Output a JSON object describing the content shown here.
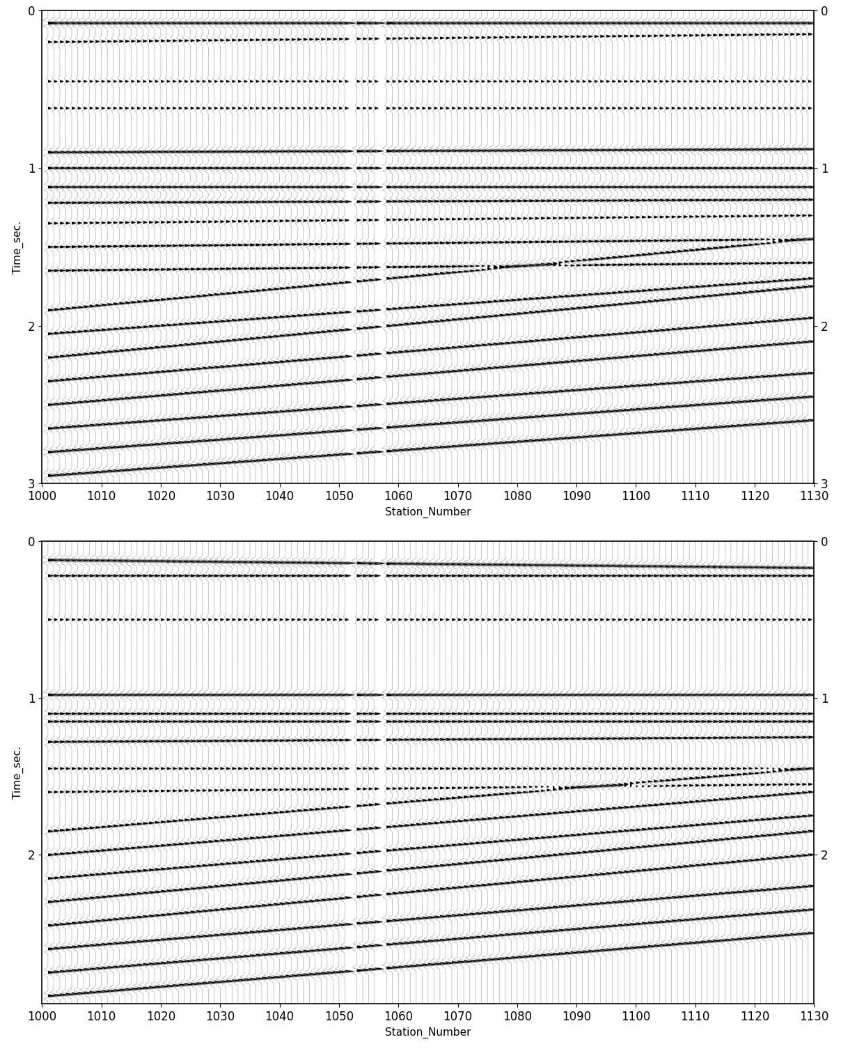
{
  "chart_data": [
    {
      "type": "wiggle",
      "x_label": "Station_Number",
      "y_label": "Time_sec.",
      "xlim": [
        1000,
        1130
      ],
      "xticks": [
        1000,
        1010,
        1020,
        1030,
        1040,
        1050,
        1060,
        1070,
        1080,
        1090,
        1100,
        1110,
        1120,
        1130
      ],
      "ylim": [
        3,
        0
      ],
      "yticks": [
        0,
        1,
        2,
        3
      ],
      "color": "#000000",
      "x": [
        1001,
        1002,
        1003,
        1004,
        1005,
        1006,
        1007,
        1008,
        1009,
        1010,
        1011,
        1012,
        1013,
        1014,
        1015,
        1016,
        1017,
        1018,
        1019,
        1020,
        1021,
        1022,
        1023,
        1024,
        1025,
        1026,
        1027,
        1028,
        1029,
        1030,
        1031,
        1032,
        1033,
        1034,
        1035,
        1036,
        1037,
        1038,
        1039,
        1040,
        1041,
        1042,
        1043,
        1044,
        1045,
        1046,
        1047,
        1048,
        1049,
        1050,
        1051,
        1053,
        1054,
        1055,
        1056,
        1058,
        1059,
        1060,
        1061,
        1062,
        1063,
        1064,
        1065,
        1066,
        1067,
        1068,
        1069,
        1070,
        1071,
        1072,
        1073,
        1074,
        1075,
        1076,
        1077,
        1078,
        1079,
        1080,
        1081,
        1082,
        1083,
        1084,
        1085,
        1086,
        1087,
        1088,
        1089,
        1090,
        1091,
        1092,
        1093,
        1094,
        1095,
        1096,
        1097,
        1098,
        1099,
        1100,
        1101,
        1102,
        1103,
        1104,
        1105,
        1106,
        1107,
        1108,
        1109,
        1110,
        1111,
        1112,
        1113,
        1114,
        1115,
        1116,
        1117,
        1118,
        1119,
        1120,
        1121,
        1122,
        1123,
        1124,
        1125,
        1126,
        1127,
        1128,
        1129
      ],
      "events": [
        {
          "time_first": 0.08,
          "time_last": 0.08,
          "amplitude": 1.5
        },
        {
          "time_first": 0.2,
          "time_last": 0.15,
          "amplitude": 0.6
        },
        {
          "time_first": 0.45,
          "time_last": 0.45,
          "amplitude": 0.5
        },
        {
          "time_first": 0.62,
          "time_last": 0.62,
          "amplitude": 0.5
        },
        {
          "time_first": 0.9,
          "time_last": 0.88,
          "amplitude": 1.2
        },
        {
          "time_first": 1.0,
          "time_last": 1.0,
          "amplitude": 1.0
        },
        {
          "time_first": 1.12,
          "time_last": 1.12,
          "amplitude": 1.1
        },
        {
          "time_first": 1.22,
          "time_last": 1.2,
          "amplitude": 0.9
        },
        {
          "time_first": 1.35,
          "time_last": 1.3,
          "amplitude": 0.6
        },
        {
          "time_first": 1.5,
          "time_last": 1.45,
          "amplitude": 0.8
        },
        {
          "time_first": 1.65,
          "time_last": 1.6,
          "amplitude": 0.8
        },
        {
          "time_first": 1.9,
          "time_last": 1.45,
          "amplitude": 0.9
        },
        {
          "time_first": 2.05,
          "time_last": 1.7,
          "amplitude": 0.9
        },
        {
          "time_first": 2.2,
          "time_last": 1.75,
          "amplitude": 1.0
        },
        {
          "time_first": 2.35,
          "time_last": 1.95,
          "amplitude": 1.0
        },
        {
          "time_first": 2.5,
          "time_last": 2.1,
          "amplitude": 1.1
        },
        {
          "time_first": 2.65,
          "time_last": 2.3,
          "amplitude": 1.1
        },
        {
          "time_first": 2.8,
          "time_last": 2.45,
          "amplitude": 1.2
        },
        {
          "time_first": 2.95,
          "time_last": 2.6,
          "amplitude": 1.2
        }
      ]
    },
    {
      "type": "wiggle",
      "x_label": "Station_Number",
      "y_label": "Time_sec.",
      "xlim": [
        1000,
        1130
      ],
      "xticks": [
        1000,
        1010,
        1020,
        1030,
        1040,
        1050,
        1060,
        1070,
        1080,
        1090,
        1100,
        1110,
        1120,
        1130
      ],
      "ylim": [
        2.95,
        0
      ],
      "yticks": [
        0,
        1,
        2
      ],
      "color": "#000000",
      "x": [
        1001,
        1002,
        1003,
        1004,
        1005,
        1006,
        1007,
        1008,
        1009,
        1010,
        1011,
        1012,
        1013,
        1014,
        1015,
        1016,
        1017,
        1018,
        1019,
        1020,
        1021,
        1022,
        1023,
        1024,
        1025,
        1026,
        1027,
        1028,
        1029,
        1030,
        1031,
        1032,
        1033,
        1034,
        1035,
        1036,
        1037,
        1038,
        1039,
        1040,
        1041,
        1042,
        1043,
        1044,
        1045,
        1046,
        1047,
        1048,
        1049,
        1050,
        1051,
        1053,
        1054,
        1055,
        1056,
        1058,
        1059,
        1060,
        1061,
        1062,
        1063,
        1064,
        1065,
        1066,
        1067,
        1068,
        1069,
        1070,
        1071,
        1072,
        1073,
        1074,
        1075,
        1076,
        1077,
        1078,
        1079,
        1080,
        1081,
        1082,
        1083,
        1084,
        1085,
        1086,
        1087,
        1088,
        1089,
        1090,
        1091,
        1092,
        1093,
        1094,
        1095,
        1096,
        1097,
        1098,
        1099,
        1100,
        1101,
        1102,
        1103,
        1104,
        1105,
        1106,
        1107,
        1108,
        1109,
        1110,
        1111,
        1112,
        1113,
        1114,
        1115,
        1116,
        1117,
        1118,
        1119,
        1120,
        1121,
        1122,
        1123,
        1124,
        1125,
        1126,
        1127,
        1128,
        1129
      ],
      "events": [
        {
          "time_first": 0.12,
          "time_last": 0.17,
          "amplitude": 1.5
        },
        {
          "time_first": 0.22,
          "time_last": 0.22,
          "amplitude": 0.8
        },
        {
          "time_first": 0.5,
          "time_last": 0.5,
          "amplitude": 0.5
        },
        {
          "time_first": 0.98,
          "time_last": 0.98,
          "amplitude": 1.3
        },
        {
          "time_first": 1.1,
          "time_last": 1.1,
          "amplitude": 0.8
        },
        {
          "time_first": 1.15,
          "time_last": 1.15,
          "amplitude": 0.9
        },
        {
          "time_first": 1.28,
          "time_last": 1.25,
          "amplitude": 0.9
        },
        {
          "time_first": 1.45,
          "time_last": 1.45,
          "amplitude": 0.6
        },
        {
          "time_first": 1.6,
          "time_last": 1.55,
          "amplitude": 0.6
        },
        {
          "time_first": 1.85,
          "time_last": 1.45,
          "amplitude": 0.8
        },
        {
          "time_first": 2.0,
          "time_last": 1.6,
          "amplitude": 0.9
        },
        {
          "time_first": 2.15,
          "time_last": 1.75,
          "amplitude": 0.9
        },
        {
          "time_first": 2.3,
          "time_last": 1.85,
          "amplitude": 1.0
        },
        {
          "time_first": 2.45,
          "time_last": 2.0,
          "amplitude": 1.0
        },
        {
          "time_first": 2.6,
          "time_last": 2.2,
          "amplitude": 1.1
        },
        {
          "time_first": 2.75,
          "time_last": 2.35,
          "amplitude": 1.1
        },
        {
          "time_first": 2.9,
          "time_last": 2.5,
          "amplitude": 1.2
        }
      ]
    }
  ]
}
